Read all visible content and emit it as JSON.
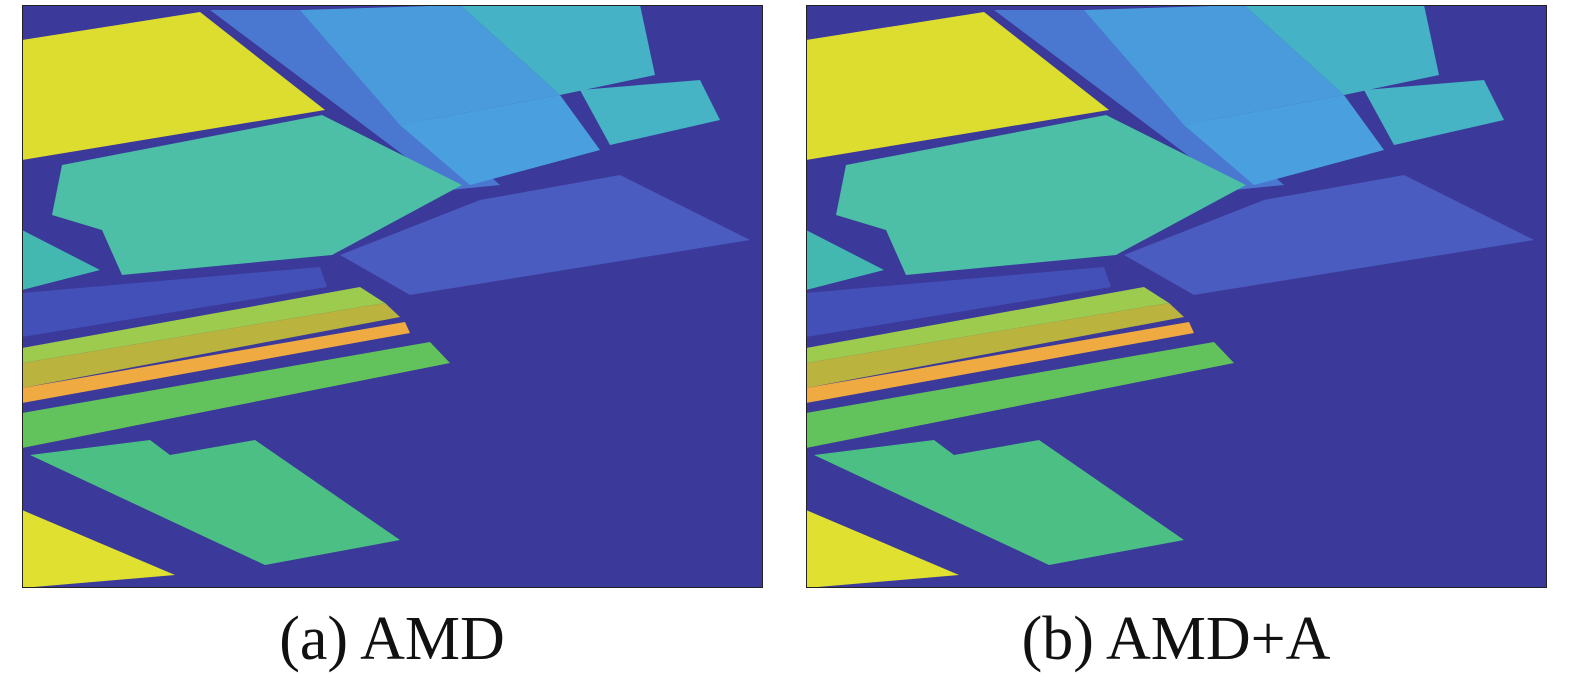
{
  "panels": [
    {
      "caption": "(a) AMD"
    },
    {
      "caption": "(b) AMD+A"
    }
  ]
}
